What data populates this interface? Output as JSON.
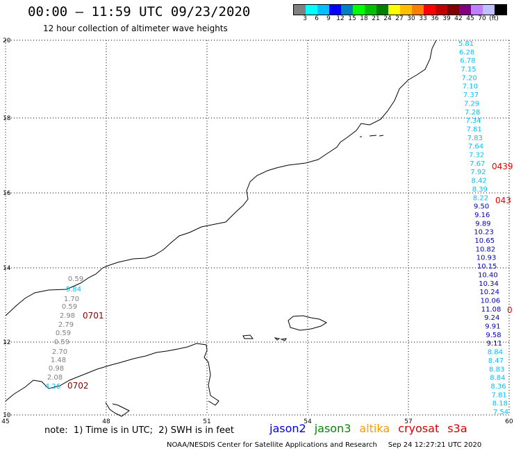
{
  "header": {
    "title": "00:00 – 11:59 UTC 09/23/2020",
    "subtitle": "12 hour collection of altimeter wave heights"
  },
  "colorbar": {
    "colors": [
      "#808080",
      "#00ffff",
      "#00bfff",
      "#0000ff",
      "#0080c0",
      "#00ff00",
      "#00c000",
      "#008000",
      "#ffff00",
      "#ffbf00",
      "#ff8000",
      "#ff0000",
      "#c00000",
      "#800000",
      "#800080",
      "#bf80ff",
      "#c0c0ff",
      "#000000"
    ],
    "labels": [
      "3",
      "6",
      "9",
      "12",
      "15",
      "18",
      "21",
      "24",
      "27",
      "30",
      "33",
      "36",
      "39",
      "42",
      "45",
      "70",
      "(ft)"
    ]
  },
  "axes": {
    "x_ticks": [
      "45",
      "48",
      "51",
      "54",
      "57",
      "60"
    ],
    "y_ticks": [
      "10",
      "12",
      "14",
      "16",
      "18",
      "20"
    ],
    "xlim": [
      45,
      60
    ],
    "ylim": [
      10,
      20
    ]
  },
  "tracks": {
    "gray_labels": [
      "0.59",
      "1.70",
      "0.59",
      "2.98",
      "2.79",
      "0.59",
      "0.59",
      "2.70",
      "1.48",
      "0.98",
      "2.08"
    ],
    "gray_cyan_labels": [
      "5.84",
      "4.26"
    ],
    "pass_labels": [
      "0701",
      "0702"
    ],
    "cyan_upper": [
      "5.81",
      "6.28",
      "6.78",
      "7.15",
      "7.20",
      "7.10",
      "7.37",
      "7.29",
      "7.28",
      "7.34",
      "7.81",
      "7.83",
      "7.64",
      "7.32",
      "7.67",
      "7.92",
      "8.42",
      "8.39",
      "8.22"
    ],
    "blue_mid": [
      "9.50",
      "9.16",
      "9.89",
      "10.23",
      "10.65",
      "10.82",
      "10.93",
      "10.15",
      "10.40",
      "10.34",
      "10.24",
      "10.06",
      "11.08",
      "9.24",
      "9.91",
      "9.58",
      "9.11"
    ],
    "cyan_lower": [
      "8.84",
      "8.47",
      "8.83",
      "8.84",
      "8.36",
      "7.81",
      "8.18",
      "7.54"
    ],
    "red_labels": [
      "0439",
      "043",
      "0"
    ]
  },
  "footer": {
    "note": "note:  1) Time is in UTC;  2) SWH is in feet",
    "legend": [
      {
        "name": "jason2",
        "color": "#0000dd"
      },
      {
        "name": "jason3",
        "color": "#008800"
      },
      {
        "name": "altika",
        "color": "#ff9900"
      },
      {
        "name": "cryosat",
        "color": "#dd0000"
      },
      {
        "name": "s3a",
        "color": "#dd0000"
      }
    ],
    "credit": "NOAA/NESDIS Center for Satellite Applications and Research     Sep 24 12:27:21 UTC 2020"
  }
}
